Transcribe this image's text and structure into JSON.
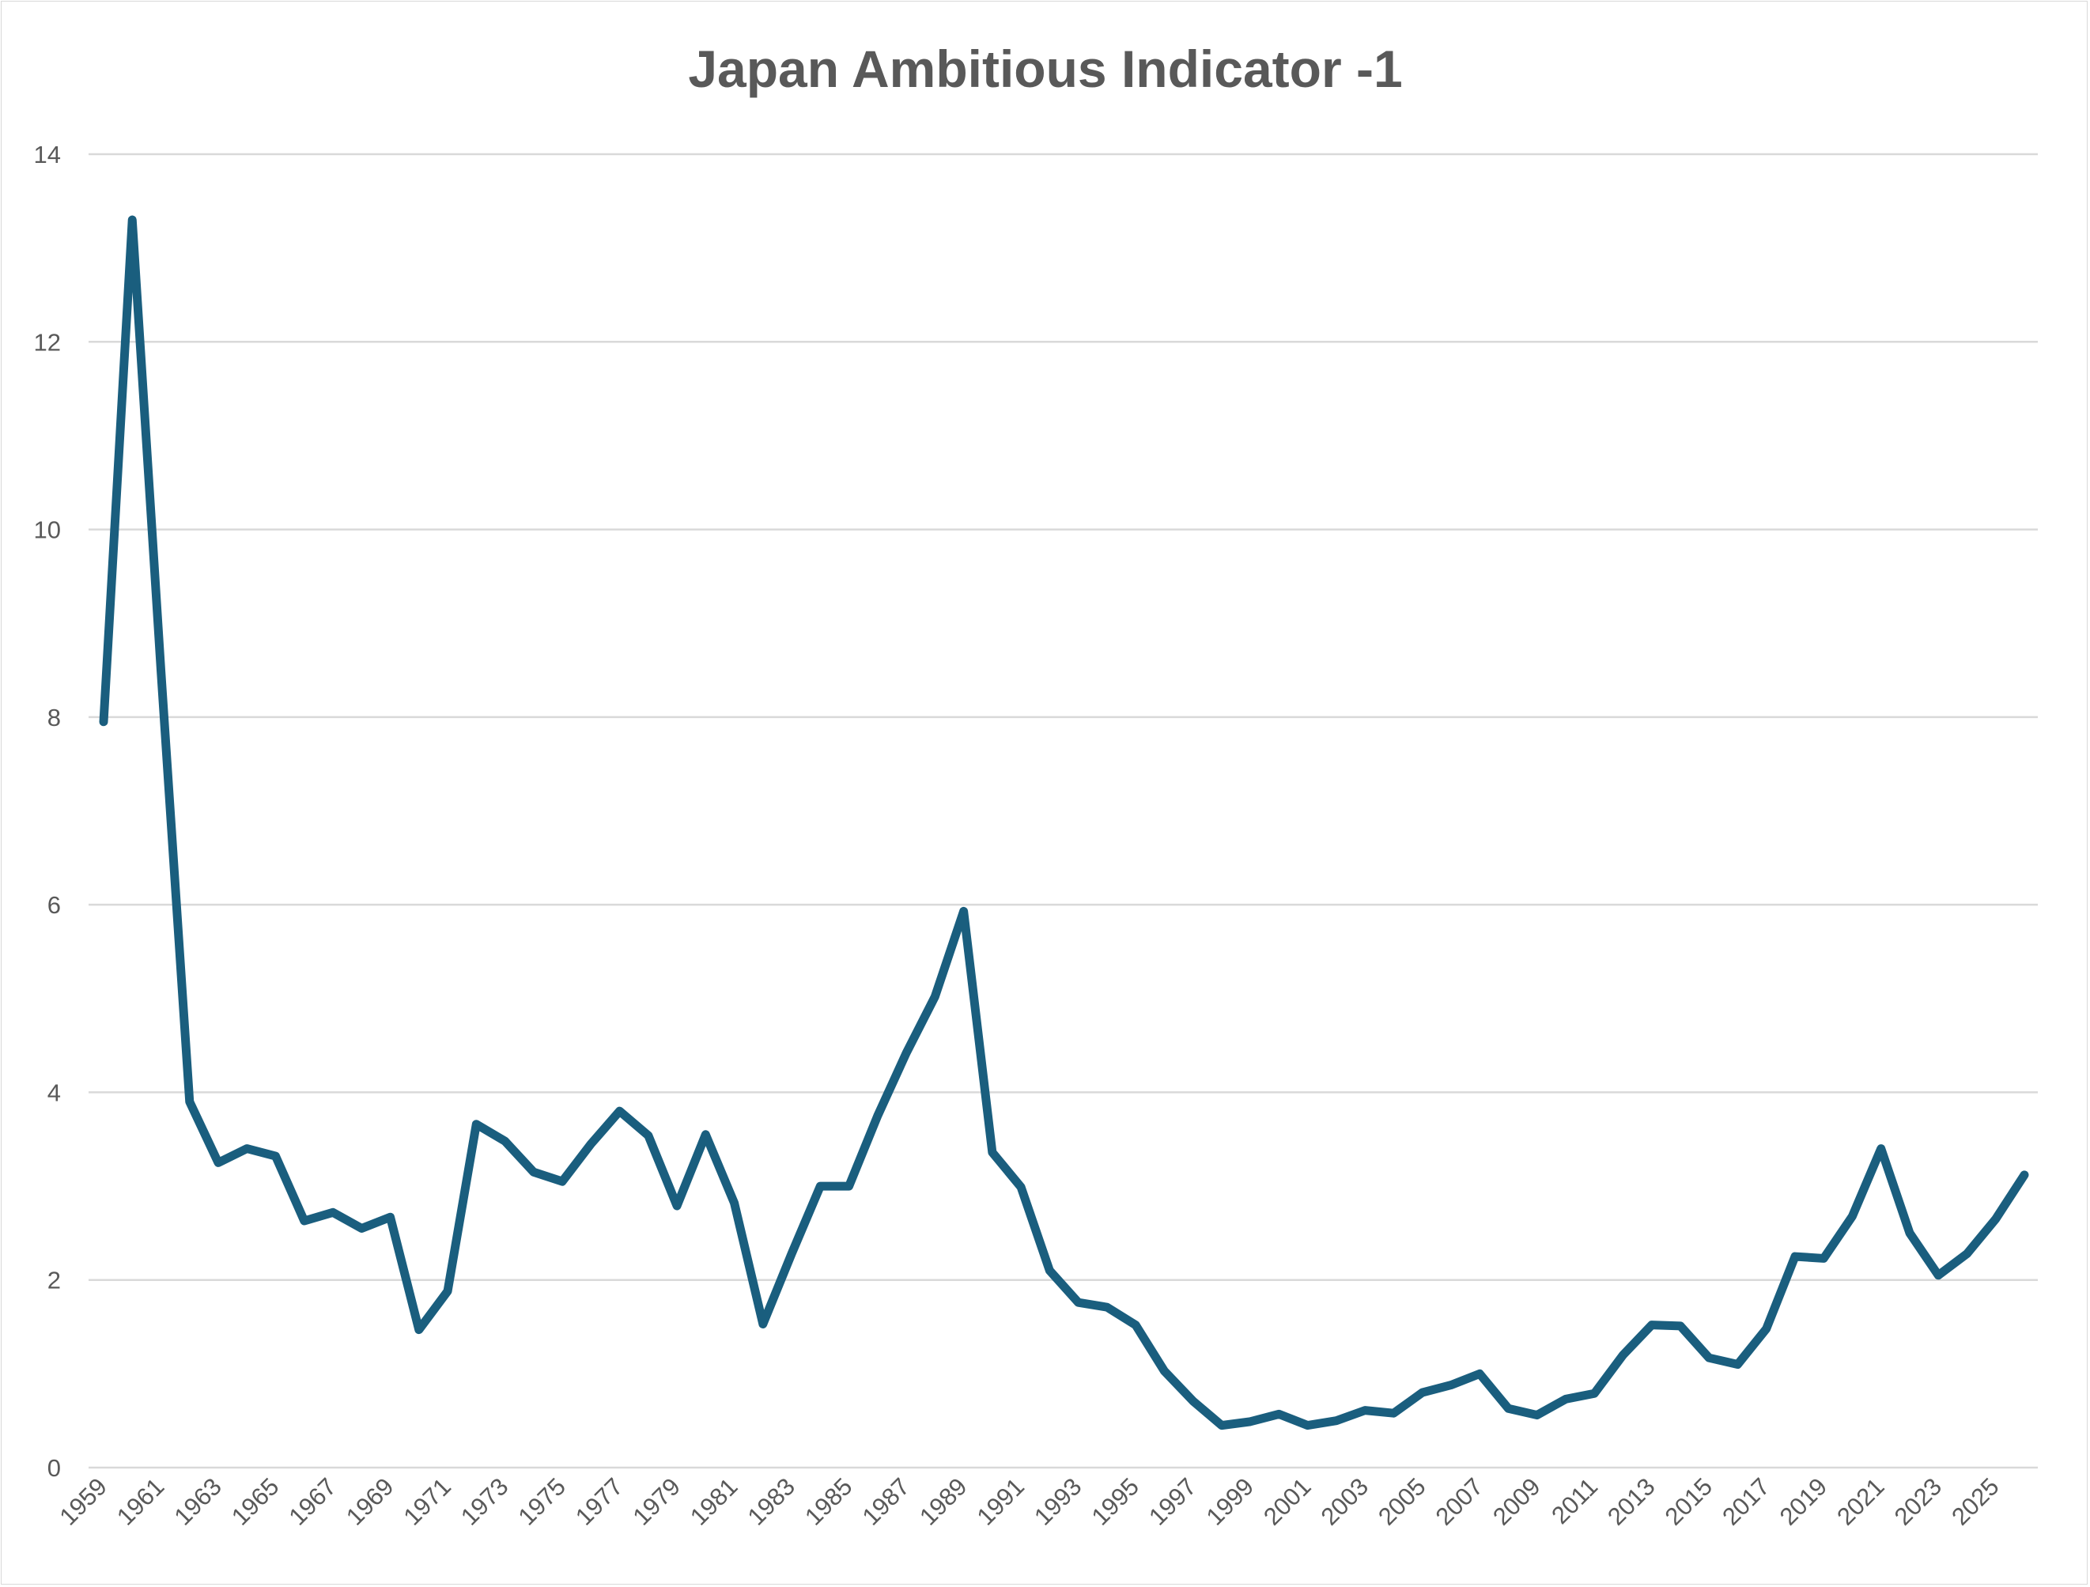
{
  "chart_data": {
    "type": "line",
    "title": "Japan Ambitious Indicator -1",
    "xlabel": "",
    "ylabel": "",
    "ylim": [
      0,
      14
    ],
    "yticks": [
      "0",
      "2",
      "4",
      "6",
      "8",
      "10",
      "12",
      "14"
    ],
    "grid": true,
    "legend": "none",
    "line_color": "#1a5e7e",
    "x": [
      1959,
      1960,
      1961,
      1962,
      1963,
      1964,
      1965,
      1966,
      1967,
      1968,
      1969,
      1970,
      1971,
      1972,
      1973,
      1974,
      1975,
      1976,
      1977,
      1978,
      1979,
      1980,
      1981,
      1982,
      1983,
      1984,
      1985,
      1986,
      1987,
      1988,
      1989,
      1990,
      1991,
      1992,
      1993,
      1994,
      1995,
      1996,
      1997,
      1998,
      1999,
      2000,
      2001,
      2002,
      2003,
      2004,
      2005,
      2006,
      2007,
      2008,
      2009,
      2010,
      2011,
      2012,
      2013,
      2014,
      2015,
      2016,
      2017,
      2018,
      2019,
      2020,
      2021,
      2022,
      2023,
      2024,
      2025,
      2026
    ],
    "xtick_labels": [
      "1959",
      "1961",
      "1963",
      "1965",
      "1967",
      "1969",
      "1971",
      "1973",
      "1975",
      "1977",
      "1979",
      "1981",
      "1983",
      "1985",
      "1987",
      "1989",
      "1991",
      "1993",
      "1995",
      "1997",
      "1999",
      "2001",
      "2003",
      "2005",
      "2007",
      "2009",
      "2011",
      "2013",
      "2015",
      "2017",
      "2019",
      "2021",
      "2023",
      "2025"
    ],
    "series": [
      {
        "name": "Japan Ambitious Indicator -1",
        "values": [
          7.95,
          13.3,
          8.5,
          3.9,
          3.25,
          3.4,
          3.32,
          2.63,
          2.72,
          2.55,
          2.67,
          1.47,
          1.88,
          3.66,
          3.48,
          3.15,
          3.05,
          3.45,
          3.8,
          3.54,
          2.79,
          3.55,
          2.82,
          1.53,
          2.28,
          3.0,
          3.0,
          3.75,
          4.42,
          5.02,
          5.93,
          3.36,
          2.99,
          2.1,
          1.76,
          1.71,
          1.52,
          1.03,
          0.71,
          0.45,
          0.49,
          0.57,
          0.45,
          0.5,
          0.61,
          0.58,
          0.8,
          0.88,
          1.0,
          0.63,
          0.56,
          0.73,
          0.79,
          1.2,
          1.52,
          1.51,
          1.17,
          1.1,
          1.48,
          2.25,
          2.23,
          2.68,
          3.4,
          2.5,
          2.05,
          2.28,
          2.65,
          3.12
        ]
      }
    ]
  }
}
